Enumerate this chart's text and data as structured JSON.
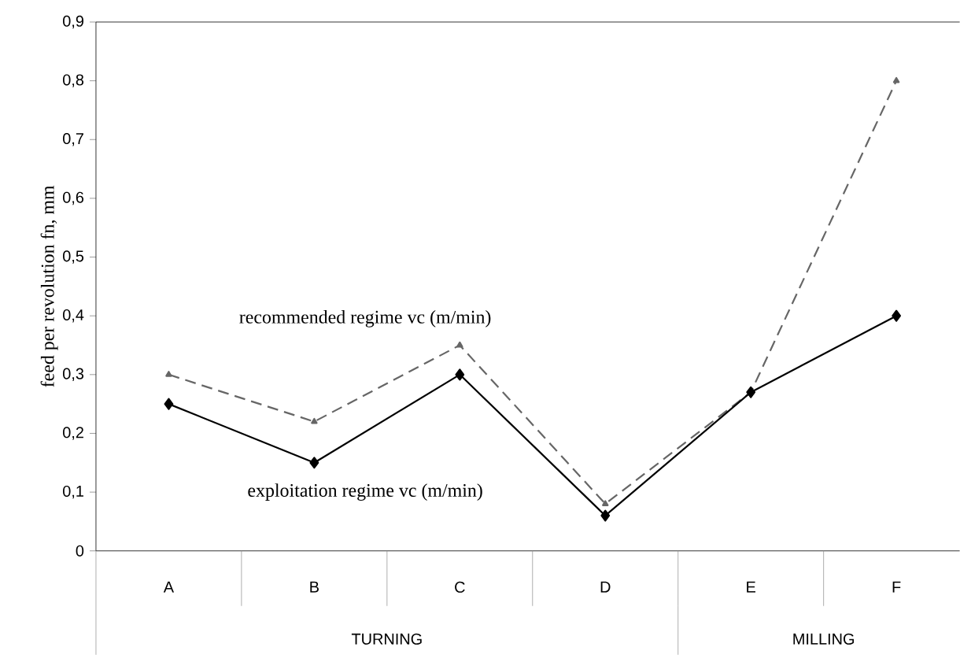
{
  "chart_data": {
    "type": "line",
    "ylabel": "feed per revolution   fn, mm",
    "categories": [
      "A",
      "B",
      "C",
      "D",
      "E",
      "F"
    ],
    "series": [
      {
        "name": "recommended regime vc (m/min)",
        "color": "#666666",
        "line_style": "dashed",
        "marker": "triangle",
        "values": [
          0.3,
          0.22,
          0.35,
          0.08,
          0.27,
          0.8
        ]
      },
      {
        "name": "exploitation regime vc (m/min)",
        "color": "#000000",
        "line_style": "solid",
        "marker": "diamond",
        "values": [
          0.25,
          0.15,
          0.3,
          0.06,
          0.27,
          0.4
        ]
      }
    ],
    "annotations": [
      "TURNING",
      "MILLING"
    ],
    "ylim": [
      0,
      0.9
    ],
    "yticks": [
      {
        "value": 0,
        "label": "0"
      },
      {
        "value": 0.1,
        "label": "0,1"
      },
      {
        "value": 0.2,
        "label": "0,2"
      },
      {
        "value": 0.3,
        "label": "0,3"
      },
      {
        "value": 0.4,
        "label": "0,4"
      },
      {
        "value": 0.5,
        "label": "0,5"
      },
      {
        "value": 0.6,
        "label": "0,6"
      },
      {
        "value": 0.7,
        "label": "0,7"
      },
      {
        "value": 0.8,
        "label": "0,8"
      },
      {
        "value": 0.9,
        "label": "0,9"
      }
    ],
    "grid": false
  }
}
